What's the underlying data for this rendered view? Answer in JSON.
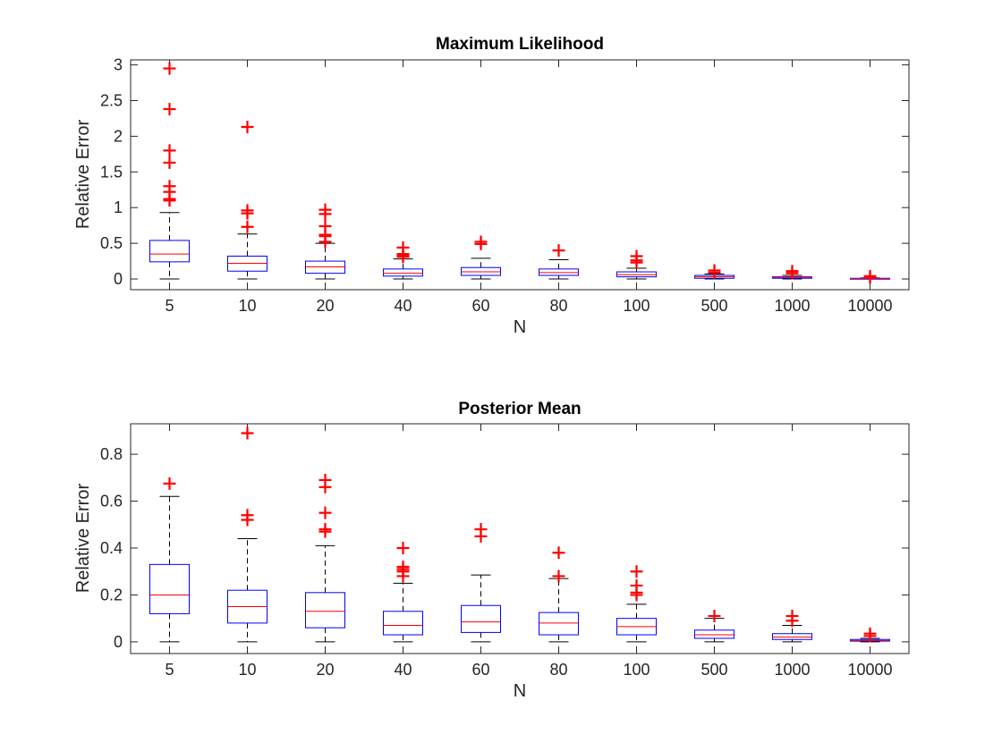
{
  "colors": {
    "box": "#0000ff",
    "median": "#ff0000",
    "outlier": "#ff0000",
    "whisker": "#000000",
    "axis": "#262626"
  },
  "chart_data": [
    {
      "type": "box",
      "title": "Maximum Likelihood",
      "xlabel": "N",
      "ylabel": "Relative Error",
      "categories": [
        "5",
        "10",
        "20",
        "40",
        "60",
        "80",
        "100",
        "500",
        "1000",
        "10000"
      ],
      "ylim": [
        -0.15,
        3.07
      ],
      "yticks": [
        0,
        0.5,
        1,
        1.5,
        2,
        2.5,
        3
      ],
      "ytick_labels": [
        "0",
        "0.5",
        "1",
        "1.5",
        "2",
        "2.5",
        "3"
      ],
      "grid": false,
      "boxes": [
        {
          "min": 0.0,
          "q1": 0.24,
          "median": 0.35,
          "q3": 0.54,
          "max": 0.93,
          "outliers": [
            1.1,
            1.12,
            1.22,
            1.3,
            1.63,
            1.8,
            2.38,
            2.95
          ]
        },
        {
          "min": 0.0,
          "q1": 0.11,
          "median": 0.22,
          "q3": 0.32,
          "max": 0.63,
          "outliers": [
            0.73,
            0.92,
            0.96,
            2.13
          ]
        },
        {
          "min": 0.0,
          "q1": 0.08,
          "median": 0.17,
          "q3": 0.25,
          "max": 0.5,
          "outliers": [
            0.52,
            0.6,
            0.62,
            0.74,
            0.91,
            0.97
          ]
        },
        {
          "min": 0.0,
          "q1": 0.04,
          "median": 0.08,
          "q3": 0.14,
          "max": 0.28,
          "outliers": [
            0.31,
            0.33,
            0.35,
            0.44
          ]
        },
        {
          "min": 0.0,
          "q1": 0.05,
          "median": 0.1,
          "q3": 0.16,
          "max": 0.29,
          "outliers": [
            0.49,
            0.52
          ]
        },
        {
          "min": 0.0,
          "q1": 0.05,
          "median": 0.09,
          "q3": 0.14,
          "max": 0.27,
          "outliers": [
            0.4
          ]
        },
        {
          "min": 0.0,
          "q1": 0.03,
          "median": 0.06,
          "q3": 0.1,
          "max": 0.15,
          "outliers": [
            0.23,
            0.26,
            0.32
          ]
        },
        {
          "min": 0.0,
          "q1": 0.01,
          "median": 0.03,
          "q3": 0.05,
          "max": 0.07,
          "outliers": [
            0.09,
            0.12
          ]
        },
        {
          "min": 0.0,
          "q1": 0.01,
          "median": 0.02,
          "q3": 0.03,
          "max": 0.05,
          "outliers": [
            0.08,
            0.11
          ]
        },
        {
          "min": 0.0,
          "q1": 0.003,
          "median": 0.006,
          "q3": 0.01,
          "max": 0.015,
          "outliers": [
            0.02,
            0.04
          ]
        }
      ]
    },
    {
      "type": "box",
      "title": "Posterior Mean",
      "xlabel": "N",
      "ylabel": "Relative Error",
      "categories": [
        "5",
        "10",
        "20",
        "40",
        "60",
        "80",
        "100",
        "500",
        "1000",
        "10000"
      ],
      "ylim": [
        -0.05,
        0.93
      ],
      "yticks": [
        0,
        0.2,
        0.4,
        0.6,
        0.8
      ],
      "ytick_labels": [
        "0",
        "0.2",
        "0.4",
        "0.6",
        "0.8"
      ],
      "grid": false,
      "boxes": [
        {
          "min": 0.0,
          "q1": 0.12,
          "median": 0.2,
          "q3": 0.33,
          "max": 0.62,
          "outliers": [
            0.675
          ]
        },
        {
          "min": 0.0,
          "q1": 0.08,
          "median": 0.15,
          "q3": 0.22,
          "max": 0.44,
          "outliers": [
            0.52,
            0.54,
            0.89
          ]
        },
        {
          "min": 0.0,
          "q1": 0.06,
          "median": 0.13,
          "q3": 0.21,
          "max": 0.41,
          "outliers": [
            0.47,
            0.48,
            0.55,
            0.66,
            0.69
          ]
        },
        {
          "min": 0.0,
          "q1": 0.03,
          "median": 0.07,
          "q3": 0.13,
          "max": 0.25,
          "outliers": [
            0.28,
            0.3,
            0.31,
            0.32,
            0.4
          ]
        },
        {
          "min": 0.0,
          "q1": 0.04,
          "median": 0.085,
          "q3": 0.155,
          "max": 0.285,
          "outliers": [
            0.45,
            0.48
          ]
        },
        {
          "min": 0.0,
          "q1": 0.03,
          "median": 0.08,
          "q3": 0.125,
          "max": 0.27,
          "outliers": [
            0.28,
            0.38
          ]
        },
        {
          "min": 0.0,
          "q1": 0.03,
          "median": 0.065,
          "q3": 0.1,
          "max": 0.16,
          "outliers": [
            0.2,
            0.21,
            0.24,
            0.3
          ]
        },
        {
          "min": 0.0,
          "q1": 0.015,
          "median": 0.03,
          "q3": 0.05,
          "max": 0.1,
          "outliers": [
            0.11
          ]
        },
        {
          "min": 0.0,
          "q1": 0.01,
          "median": 0.02,
          "q3": 0.035,
          "max": 0.07,
          "outliers": [
            0.09,
            0.11
          ]
        },
        {
          "min": 0.0,
          "q1": 0.003,
          "median": 0.006,
          "q3": 0.01,
          "max": 0.015,
          "outliers": [
            0.025,
            0.035
          ]
        }
      ]
    }
  ]
}
